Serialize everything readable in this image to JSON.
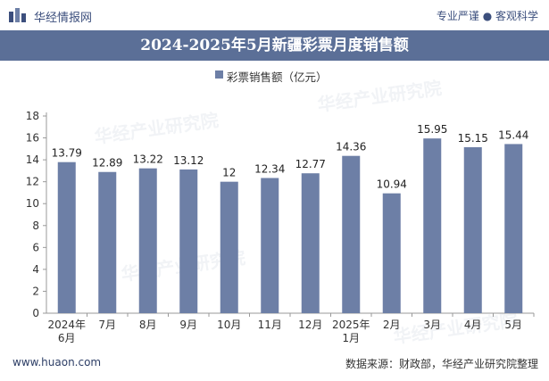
{
  "header": {
    "brand": "华经情报网",
    "tagline": "专业严谨 ● 客观科学"
  },
  "title": "2024-2025年5月新疆彩票月度销售额",
  "legend_label": "彩票销售额（亿元）",
  "footer": {
    "website": "www.huaon.com",
    "source": "数据来源：财政部，华经产业研究院整理"
  },
  "watermark_text": "华经产业研究院",
  "colors": {
    "bar": "#6d7fa6",
    "title_bg": "#5b6f97",
    "brand": "#3c4f7d"
  },
  "chart_data": {
    "type": "bar",
    "categories": [
      "2024年\n6月",
      "7月",
      "8月",
      "9月",
      "10月",
      "11月",
      "12月",
      "2025年\n1月",
      "2月",
      "3月",
      "4月",
      "5月"
    ],
    "series": [
      {
        "name": "彩票销售额（亿元）",
        "values": [
          13.79,
          12.89,
          13.22,
          13.12,
          12,
          12.34,
          12.77,
          14.36,
          10.94,
          15.95,
          15.15,
          15.44
        ]
      }
    ],
    "data_labels": [
      "13.79",
      "12.89",
      "13.22",
      "13.12",
      "12",
      "12.34",
      "12.77",
      "14.36",
      "10.94",
      "15.95",
      "15.15",
      "15.44"
    ],
    "ylim": [
      0,
      18
    ],
    "yticks": [
      0,
      2,
      4,
      6,
      8,
      10,
      12,
      14,
      16,
      18
    ],
    "grid": false,
    "legend_position": "top-center"
  }
}
